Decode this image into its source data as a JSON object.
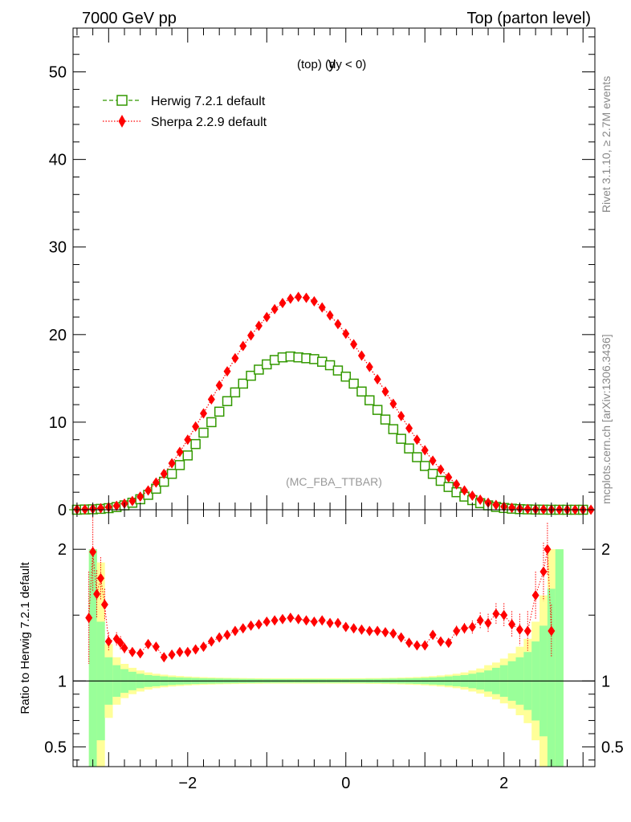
{
  "header": {
    "left": "7000 GeV pp",
    "right": "Top (parton level)"
  },
  "side_labels": {
    "rivet": "Rivet 3.1.10, ≥ 2.7M events",
    "mcplots": "mcplots.cern.ch [arXiv:1306.3436]"
  },
  "chart_data": [
    {
      "type": "line",
      "title_main": "y",
      "title_sub": "(top) (dy < 0)",
      "watermark": "(MC_FBA_TTBAR)",
      "xlim": [
        -3.45,
        3.15
      ],
      "ylim": [
        0,
        55
      ],
      "y_ticks": [
        0,
        10,
        20,
        30,
        40,
        50
      ],
      "x_ticks": [
        -2,
        0,
        2
      ],
      "series": [
        {
          "name": "Herwig 7.2.1 default",
          "color": "#339900",
          "marker": "open-square",
          "line": "dashed",
          "x": [
            -3.5,
            -3.4,
            -3.3,
            -3.2,
            -3.1,
            -3.0,
            -2.9,
            -2.8,
            -2.7,
            -2.6,
            -2.5,
            -2.4,
            -2.3,
            -2.2,
            -2.1,
            -2.0,
            -1.9,
            -1.8,
            -1.7,
            -1.6,
            -1.5,
            -1.4,
            -1.3,
            -1.2,
            -1.1,
            -1.0,
            -0.9,
            -0.8,
            -0.7,
            -0.6,
            -0.5,
            -0.4,
            -0.3,
            -0.2,
            -0.1,
            0.0,
            0.1,
            0.2,
            0.3,
            0.4,
            0.5,
            0.6,
            0.7,
            0.8,
            0.9,
            1.0,
            1.1,
            1.2,
            1.3,
            1.4,
            1.5,
            1.6,
            1.7,
            1.8,
            1.9,
            2.0,
            2.1,
            2.2,
            2.3,
            2.4,
            2.5,
            2.6,
            2.7,
            2.8,
            2.9,
            3.0
          ],
          "y": [
            0.0,
            0.0,
            0.03,
            0.05,
            0.1,
            0.18,
            0.3,
            0.5,
            0.8,
            1.2,
            1.7,
            2.4,
            3.2,
            4.1,
            5.1,
            6.2,
            7.5,
            8.8,
            10.0,
            11.2,
            12.4,
            13.4,
            14.4,
            15.3,
            16.0,
            16.6,
            17.1,
            17.4,
            17.5,
            17.4,
            17.3,
            17.2,
            16.9,
            16.5,
            15.9,
            15.2,
            14.4,
            13.5,
            12.5,
            11.4,
            10.3,
            9.2,
            8.1,
            7.0,
            6.0,
            5.0,
            4.1,
            3.3,
            2.6,
            2.0,
            1.5,
            1.1,
            0.75,
            0.5,
            0.32,
            0.2,
            0.12,
            0.07,
            0.04,
            0.02,
            0.01,
            0.0,
            0.0,
            0.0,
            0.0,
            0.0
          ]
        },
        {
          "name": "Sherpa 2.2.9 default",
          "color": "#ff0000",
          "marker": "filled-diamond",
          "line": "dotted",
          "x": [
            -3.4,
            -3.3,
            -3.2,
            -3.1,
            -3.0,
            -2.9,
            -2.8,
            -2.7,
            -2.6,
            -2.5,
            -2.4,
            -2.3,
            -2.2,
            -2.1,
            -2.0,
            -1.9,
            -1.8,
            -1.7,
            -1.6,
            -1.5,
            -1.4,
            -1.3,
            -1.2,
            -1.1,
            -1.0,
            -0.9,
            -0.8,
            -0.7,
            -0.6,
            -0.5,
            -0.4,
            -0.3,
            -0.2,
            -0.1,
            0.0,
            0.1,
            0.2,
            0.3,
            0.4,
            0.5,
            0.6,
            0.7,
            0.8,
            0.9,
            1.0,
            1.1,
            1.2,
            1.3,
            1.4,
            1.5,
            1.6,
            1.7,
            1.8,
            1.9,
            2.0,
            2.1,
            2.2,
            2.3,
            2.4,
            2.5,
            2.6,
            2.7,
            2.8,
            2.9,
            3.0,
            3.1
          ],
          "y": [
            0.05,
            0.05,
            0.1,
            0.17,
            0.3,
            0.45,
            0.7,
            1.0,
            1.5,
            2.2,
            3.1,
            4.1,
            5.3,
            6.6,
            8.0,
            9.5,
            11.0,
            12.6,
            14.2,
            15.8,
            17.3,
            18.7,
            19.9,
            21.0,
            22.0,
            22.9,
            23.6,
            24.1,
            24.3,
            24.2,
            23.8,
            23.1,
            22.2,
            21.2,
            20.1,
            18.9,
            17.6,
            16.3,
            14.9,
            13.5,
            12.1,
            10.7,
            9.3,
            8.0,
            6.8,
            5.6,
            4.6,
            3.7,
            2.9,
            2.2,
            1.6,
            1.15,
            0.8,
            0.55,
            0.35,
            0.22,
            0.14,
            0.08,
            0.05,
            0.03,
            0.02,
            0.01,
            0.01,
            0.0,
            0.0,
            0.0
          ]
        }
      ]
    },
    {
      "type": "line",
      "ylabel": "Ratio to Herwig 7.2.1 default",
      "xlim": [
        -3.45,
        3.15
      ],
      "ylim": [
        0.35,
        2.3
      ],
      "y_ticks": [
        0.5,
        1,
        2
      ],
      "y_tick_labels": [
        "0.5",
        "1",
        "2"
      ],
      "reference": 1,
      "band_colors": {
        "inner": "#99ff99",
        "outer": "#ffff99"
      },
      "band_x": [
        -3.4,
        -3.3,
        -3.2,
        -3.1,
        -3.0,
        -2.9,
        -2.8,
        -2.7,
        -2.6,
        -2.5,
        -2.4,
        -2.3,
        -2.2,
        -2.1,
        -2.0,
        -1.9,
        -1.8,
        -1.7,
        -1.6,
        -1.5,
        -1.4,
        -1.3,
        -1.2,
        -1.1,
        -1.0,
        -0.9,
        -0.8,
        -0.7,
        -0.6,
        -0.5,
        -0.4,
        -0.3,
        -0.2,
        -0.1,
        0.0,
        0.1,
        0.2,
        0.3,
        0.4,
        0.5,
        0.6,
        0.7,
        0.8,
        0.9,
        1.0,
        1.1,
        1.2,
        1.3,
        1.4,
        1.5,
        1.6,
        1.7,
        1.8,
        1.9,
        2.0,
        2.1,
        2.2,
        2.3,
        2.4,
        2.5,
        2.6,
        2.7,
        2.8,
        2.9,
        3.0
      ],
      "band_inner": [
        0.0,
        0.0,
        1.0,
        0.45,
        0.18,
        0.12,
        0.09,
        0.07,
        0.055,
        0.045,
        0.04,
        0.035,
        0.03,
        0.027,
        0.025,
        0.023,
        0.021,
        0.02,
        0.019,
        0.018,
        0.017,
        0.016,
        0.016,
        0.015,
        0.015,
        0.014,
        0.014,
        0.014,
        0.014,
        0.014,
        0.014,
        0.014,
        0.014,
        0.014,
        0.014,
        0.015,
        0.015,
        0.016,
        0.016,
        0.017,
        0.018,
        0.019,
        0.02,
        0.022,
        0.024,
        0.027,
        0.03,
        0.035,
        0.04,
        0.045,
        0.055,
        0.065,
        0.08,
        0.1,
        0.12,
        0.15,
        0.18,
        0.22,
        0.3,
        0.42,
        0.7,
        1.0,
        0.0,
        0.0,
        0.0
      ],
      "band_outer": [
        0.0,
        0.0,
        1.0,
        0.9,
        0.28,
        0.18,
        0.13,
        0.1,
        0.08,
        0.065,
        0.055,
        0.048,
        0.042,
        0.038,
        0.034,
        0.031,
        0.029,
        0.027,
        0.025,
        0.024,
        0.023,
        0.022,
        0.021,
        0.021,
        0.02,
        0.02,
        0.02,
        0.02,
        0.02,
        0.02,
        0.02,
        0.02,
        0.02,
        0.02,
        0.02,
        0.021,
        0.021,
        0.022,
        0.022,
        0.023,
        0.024,
        0.026,
        0.028,
        0.03,
        0.033,
        0.037,
        0.042,
        0.048,
        0.055,
        0.065,
        0.08,
        0.095,
        0.12,
        0.14,
        0.17,
        0.21,
        0.26,
        0.32,
        0.45,
        0.65,
        1.0,
        1.0,
        0.0,
        0.0,
        0.0
      ],
      "series": [
        {
          "name": "Sherpa 2.2.9 default",
          "color": "#ff0000",
          "marker": "filled-diamond",
          "x": [
            -3.25,
            -3.2,
            -3.15,
            -3.1,
            -3.05,
            -3.0,
            -2.9,
            -2.85,
            -2.8,
            -2.7,
            -2.6,
            -2.5,
            -2.4,
            -2.3,
            -2.2,
            -2.1,
            -2.0,
            -1.9,
            -1.8,
            -1.7,
            -1.6,
            -1.5,
            -1.4,
            -1.3,
            -1.2,
            -1.1,
            -1.0,
            -0.9,
            -0.8,
            -0.7,
            -0.6,
            -0.5,
            -0.4,
            -0.3,
            -0.2,
            -0.1,
            0.0,
            0.1,
            0.2,
            0.3,
            0.4,
            0.5,
            0.6,
            0.7,
            0.8,
            0.9,
            1.0,
            1.1,
            1.2,
            1.3,
            1.4,
            1.5,
            1.6,
            1.7,
            1.8,
            1.9,
            2.0,
            2.1,
            2.2,
            2.3,
            2.4,
            2.5,
            2.55,
            2.6
          ],
          "y": [
            1.48,
            1.98,
            1.66,
            1.78,
            1.58,
            1.3,
            1.32,
            1.29,
            1.25,
            1.22,
            1.21,
            1.28,
            1.26,
            1.18,
            1.2,
            1.22,
            1.22,
            1.24,
            1.26,
            1.3,
            1.33,
            1.35,
            1.38,
            1.4,
            1.42,
            1.43,
            1.45,
            1.46,
            1.47,
            1.48,
            1.47,
            1.46,
            1.45,
            1.46,
            1.44,
            1.44,
            1.41,
            1.4,
            1.39,
            1.38,
            1.38,
            1.37,
            1.36,
            1.33,
            1.29,
            1.27,
            1.27,
            1.35,
            1.3,
            1.29,
            1.38,
            1.4,
            1.41,
            1.46,
            1.44,
            1.51,
            1.5,
            1.43,
            1.39,
            1.38,
            1.65,
            1.83,
            2.0,
            1.38
          ],
          "err": [
            0.35,
            0.3,
            0.18,
            0.16,
            0.12,
            0.07,
            0.05,
            0.05,
            0.04,
            0.03,
            0.03,
            0.03,
            0.03,
            0.02,
            0.02,
            0.02,
            0.02,
            0.02,
            0.02,
            0.02,
            0.02,
            0.02,
            0.02,
            0.02,
            0.02,
            0.02,
            0.02,
            0.02,
            0.02,
            0.02,
            0.02,
            0.02,
            0.02,
            0.02,
            0.02,
            0.02,
            0.02,
            0.02,
            0.02,
            0.02,
            0.02,
            0.02,
            0.02,
            0.02,
            0.02,
            0.02,
            0.02,
            0.03,
            0.03,
            0.03,
            0.04,
            0.04,
            0.05,
            0.06,
            0.07,
            0.08,
            0.09,
            0.1,
            0.12,
            0.15,
            0.18,
            0.22,
            0.2,
            0.2
          ]
        }
      ]
    }
  ]
}
